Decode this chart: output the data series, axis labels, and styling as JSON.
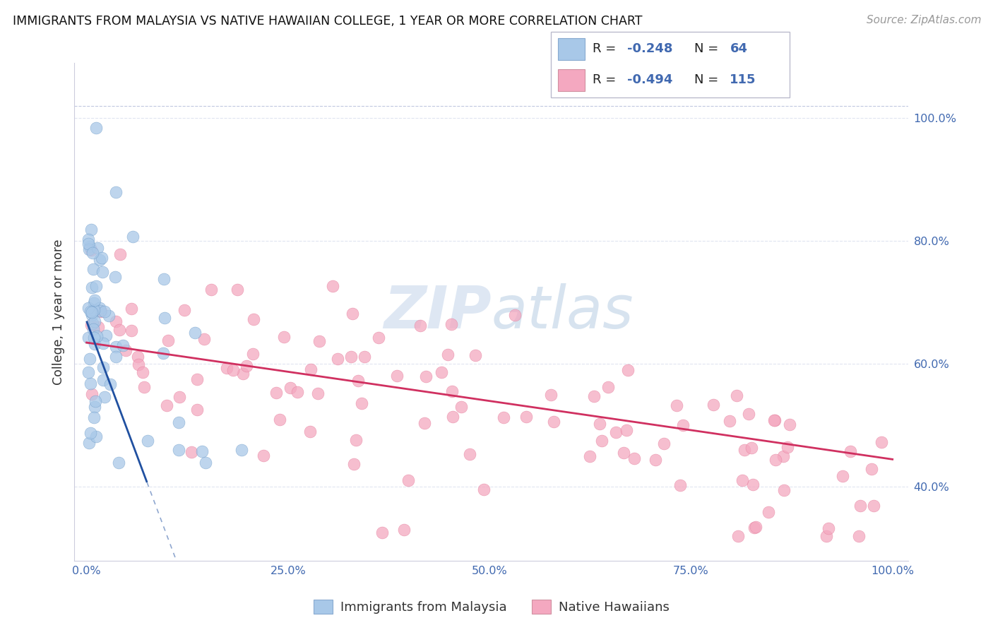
{
  "title": "IMMIGRANTS FROM MALAYSIA VS NATIVE HAWAIIAN COLLEGE, 1 YEAR OR MORE CORRELATION CHART",
  "source": "Source: ZipAtlas.com",
  "ylabel": "College, 1 year or more",
  "blue_R": -0.248,
  "blue_N": 64,
  "pink_R": -0.494,
  "pink_N": 115,
  "blue_color": "#a8c8e8",
  "pink_color": "#f4a8c0",
  "blue_edge_color": "#6090c0",
  "pink_edge_color": "#e07090",
  "blue_line_color": "#2050a0",
  "pink_line_color": "#d03060",
  "legend_label_blue": "Immigrants from Malaysia",
  "legend_label_pink": "Native Hawaiians",
  "accent_color": "#4169b0",
  "text_color": "#333333",
  "grid_color": "#e0e4f0",
  "source_color": "#999999",
  "watermark_zip_color": "#c8d8ec",
  "watermark_atlas_color": "#b0c8e0"
}
